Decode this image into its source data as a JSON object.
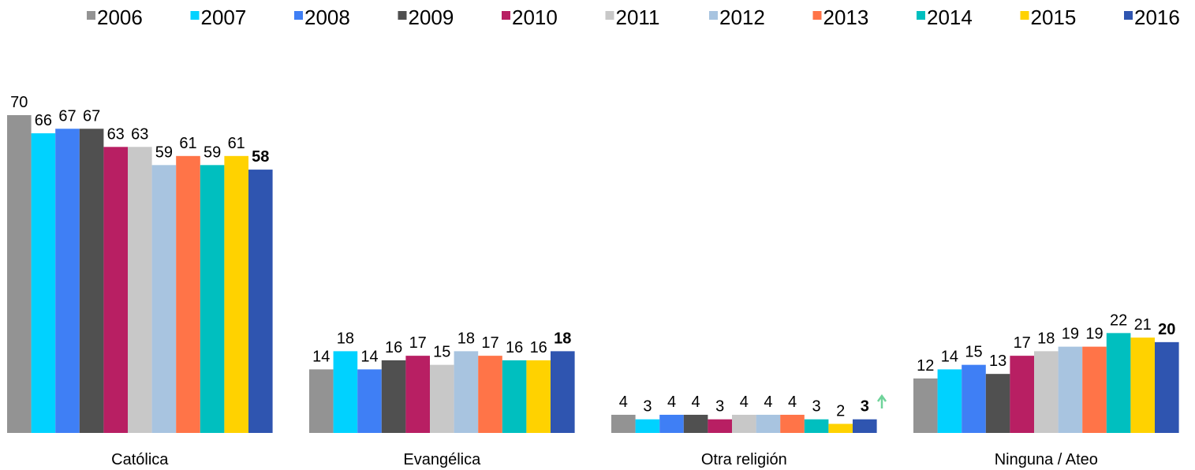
{
  "chart_data": {
    "type": "bar",
    "categories": [
      "Católica",
      "Evangélica",
      "Otra religión",
      "Ninguna / Ateo"
    ],
    "series": [
      {
        "name": "2006",
        "color": "#939393",
        "values": [
          70,
          14,
          4,
          12
        ]
      },
      {
        "name": "2007",
        "color": "#00d2ff",
        "values": [
          66,
          18,
          3,
          14
        ]
      },
      {
        "name": "2008",
        "color": "#3f7ff5",
        "values": [
          67,
          14,
          4,
          15
        ]
      },
      {
        "name": "2009",
        "color": "#505050",
        "values": [
          67,
          16,
          4,
          13
        ]
      },
      {
        "name": "2010",
        "color": "#b81f63",
        "values": [
          63,
          17,
          3,
          17
        ]
      },
      {
        "name": "2011",
        "color": "#c8c8c8",
        "values": [
          63,
          15,
          4,
          18
        ]
      },
      {
        "name": "2012",
        "color": "#a8c4e0",
        "values": [
          59,
          18,
          4,
          19
        ]
      },
      {
        "name": "2013",
        "color": "#ff7448",
        "values": [
          61,
          17,
          4,
          19
        ]
      },
      {
        "name": "2014",
        "color": "#00bfbf",
        "values": [
          59,
          16,
          3,
          22
        ]
      },
      {
        "name": "2015",
        "color": "#ffd200",
        "values": [
          61,
          16,
          2,
          21
        ]
      },
      {
        "name": "2016",
        "color": "#2f55b0",
        "values": [
          58,
          18,
          3,
          20
        ],
        "bold": true
      }
    ],
    "ylim": [
      0,
      70
    ],
    "legend": "top"
  }
}
